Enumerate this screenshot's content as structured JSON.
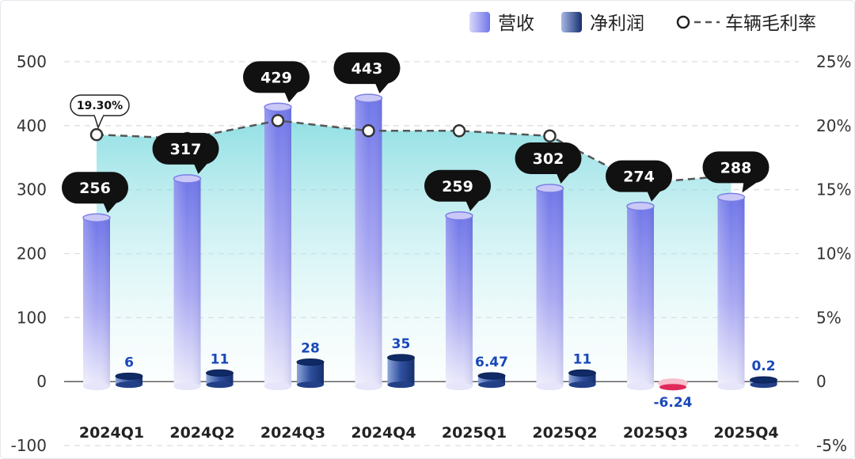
{
  "chart_data": {
    "type": "bar",
    "categories": [
      "2024Q1",
      "2024Q2",
      "2024Q3",
      "2024Q4",
      "2025Q1",
      "2025Q2",
      "2025Q3",
      "2025Q4"
    ],
    "series": [
      {
        "name": "营收",
        "type": "bar",
        "axis": "left",
        "values": [
          256,
          317,
          429,
          443,
          259,
          302,
          274,
          288
        ],
        "labels": [
          "256",
          "317",
          "429",
          "443",
          "259",
          "302",
          "274",
          "288"
        ],
        "color": "#8a8cf0"
      },
      {
        "name": "净利润",
        "type": "bar",
        "axis": "left",
        "values": [
          6,
          11,
          28,
          35,
          6.47,
          11,
          -6.24,
          0.2
        ],
        "labels": [
          "6",
          "11",
          "28",
          "35",
          "6.47",
          "11",
          "-6.24",
          "0.2"
        ],
        "color": "#1f3e8c",
        "negative_color": "#e03060"
      },
      {
        "name": "车辆毛利率",
        "type": "line",
        "axis": "right",
        "values": [
          19.3,
          19.0,
          20.4,
          19.6,
          19.6,
          19.2,
          15.5,
          16.1
        ],
        "labels": [
          "19.30%"
        ],
        "label_index": [
          0
        ],
        "color": "#555555"
      }
    ],
    "ylim": [
      -100,
      500
    ],
    "yticks": [
      "500",
      "400",
      "300",
      "200",
      "100",
      "0",
      "-100"
    ],
    "ytick_values": [
      500,
      400,
      300,
      200,
      100,
      0,
      -100
    ],
    "y2lim": [
      -5,
      25
    ],
    "y2ticks": [
      "25%",
      "20%",
      "15%",
      "10%",
      "5%",
      "0",
      "-5%"
    ],
    "y2tick_values": [
      25,
      20,
      15,
      10,
      5,
      0,
      -5
    ],
    "grid": true,
    "legend": "top-right"
  }
}
